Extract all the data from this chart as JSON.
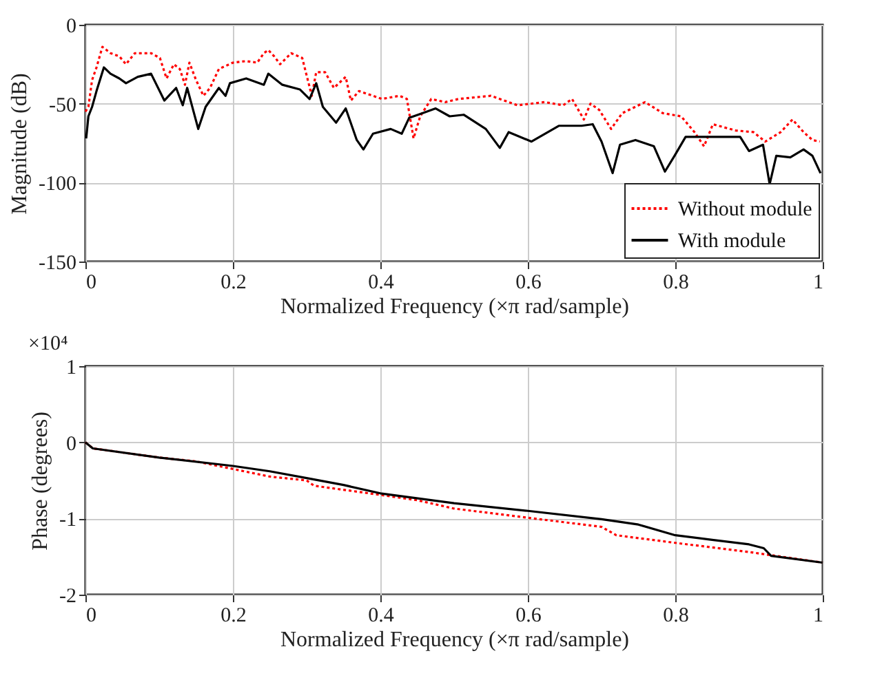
{
  "chart_data": [
    {
      "type": "line",
      "xlabel": "Normalized Frequency  (×π rad/sample)",
      "ylabel": "Magnitude (dB)",
      "xlim": [
        0,
        1
      ],
      "ylim": [
        -150,
        0
      ],
      "xticks": [
        0,
        0.2,
        0.4,
        0.6,
        0.8,
        1
      ],
      "yticks": [
        -150,
        -100,
        -50,
        0
      ],
      "grid": true,
      "legend": "bottom right",
      "series": [
        {
          "name": "Without module",
          "color": "#ff0000",
          "line_style": "dotted",
          "x": [
            0,
            0.004,
            0.009,
            0.015,
            0.023,
            0.034,
            0.046,
            0.055,
            0.067,
            0.089,
            0.101,
            0.11,
            0.12,
            0.128,
            0.135,
            0.141,
            0.15,
            0.16,
            0.169,
            0.181,
            0.2,
            0.218,
            0.233,
            0.242,
            0.248,
            0.256,
            0.264,
            0.279,
            0.294,
            0.307,
            0.313,
            0.325,
            0.337,
            0.353,
            0.36,
            0.371,
            0.39,
            0.402,
            0.426,
            0.436,
            0.445,
            0.454,
            0.469,
            0.488,
            0.506,
            0.55,
            0.586,
            0.623,
            0.648,
            0.66,
            0.676,
            0.685,
            0.697,
            0.713,
            0.728,
            0.759,
            0.783,
            0.808,
            0.826,
            0.839,
            0.851,
            0.882,
            0.906,
            0.922,
            0.943,
            0.959,
            0.974,
            0.986,
            0.996
          ],
          "values": [
            -55,
            -52,
            -35,
            -27,
            -14,
            -18,
            -20,
            -25,
            -18,
            -18,
            -21,
            -34,
            -25,
            -28,
            -38,
            -24,
            -35,
            -45,
            -40,
            -28,
            -24,
            -23,
            -24,
            -18,
            -16,
            -20,
            -25,
            -18,
            -21,
            -45,
            -30,
            -30,
            -40,
            -33,
            -48,
            -42,
            -45,
            -47,
            -45,
            -47,
            -72,
            -58,
            -47,
            -49,
            -47,
            -45,
            -51,
            -49,
            -51,
            -47,
            -60,
            -50,
            -54,
            -66,
            -56,
            -49,
            -56,
            -58,
            -68,
            -77,
            -63,
            -67,
            -68,
            -74,
            -68,
            -60,
            -68,
            -73,
            -74
          ]
        },
        {
          "name": "With module",
          "color": "#000000",
          "line_style": "solid",
          "x": [
            0.001,
            0.004,
            0.009,
            0.015,
            0.025,
            0.034,
            0.046,
            0.055,
            0.071,
            0.089,
            0.107,
            0.123,
            0.132,
            0.138,
            0.153,
            0.163,
            0.181,
            0.19,
            0.196,
            0.218,
            0.242,
            0.248,
            0.267,
            0.291,
            0.304,
            0.313,
            0.322,
            0.34,
            0.353,
            0.368,
            0.377,
            0.39,
            0.414,
            0.429,
            0.439,
            0.457,
            0.475,
            0.494,
            0.513,
            0.543,
            0.562,
            0.574,
            0.605,
            0.642,
            0.673,
            0.688,
            0.7,
            0.715,
            0.725,
            0.746,
            0.771,
            0.786,
            0.799,
            0.814,
            0.845,
            0.888,
            0.9,
            0.919,
            0.928,
            0.937,
            0.956,
            0.974,
            0.986,
            0.997
          ],
          "values": [
            -72,
            -58,
            -52,
            -42,
            -27,
            -31,
            -34,
            -37,
            -33,
            -31,
            -48,
            -40,
            -51,
            -40,
            -66,
            -52,
            -40,
            -45,
            -37,
            -34,
            -38,
            -31,
            -38,
            -41,
            -47,
            -37,
            -52,
            -62,
            -53,
            -73,
            -79,
            -69,
            -66,
            -69,
            -59,
            -56,
            -53,
            -58,
            -57,
            -66,
            -78,
            -68,
            -74,
            -64,
            -64,
            -63,
            -74,
            -94,
            -76,
            -73,
            -77,
            -93,
            -83,
            -71,
            -71,
            -71,
            -80,
            -76,
            -101,
            -83,
            -84,
            -79,
            -83,
            -94
          ]
        }
      ]
    },
    {
      "type": "line",
      "xlabel": "Normalized Frequency  (×π rad/sample)",
      "ylabel": "Phase (degrees)",
      "annotations": [
        "×10⁴"
      ],
      "xlim": [
        0,
        1
      ],
      "ylim": [
        -2,
        1
      ],
      "xticks": [
        0,
        0.2,
        0.4,
        0.6,
        0.8,
        1
      ],
      "yticks": [
        -2,
        -1,
        0,
        1
      ],
      "grid": true,
      "series": [
        {
          "color": "#ff0000",
          "line_style": "dotted",
          "x": [
            0,
            0.01,
            0.1,
            0.15,
            0.2,
            0.25,
            0.3,
            0.31,
            0.4,
            0.45,
            0.5,
            0.6,
            0.7,
            0.72,
            0.8,
            0.9,
            1
          ],
          "values": [
            0,
            -0.08,
            -0.2,
            -0.25,
            -0.35,
            -0.45,
            -0.5,
            -0.57,
            -0.69,
            -0.76,
            -0.87,
            -0.99,
            -1.11,
            -1.22,
            -1.32,
            -1.44,
            -1.58
          ]
        },
        {
          "color": "#000000",
          "line_style": "solid",
          "x": [
            0,
            0.01,
            0.1,
            0.2,
            0.25,
            0.3,
            0.35,
            0.4,
            0.5,
            0.6,
            0.7,
            0.75,
            0.8,
            0.85,
            0.9,
            0.92,
            0.93,
            1
          ],
          "values": [
            0,
            -0.08,
            -0.2,
            -0.31,
            -0.38,
            -0.47,
            -0.56,
            -0.67,
            -0.8,
            -0.9,
            -1.01,
            -1.08,
            -1.22,
            -1.28,
            -1.34,
            -1.39,
            -1.49,
            -1.58
          ]
        }
      ]
    }
  ]
}
